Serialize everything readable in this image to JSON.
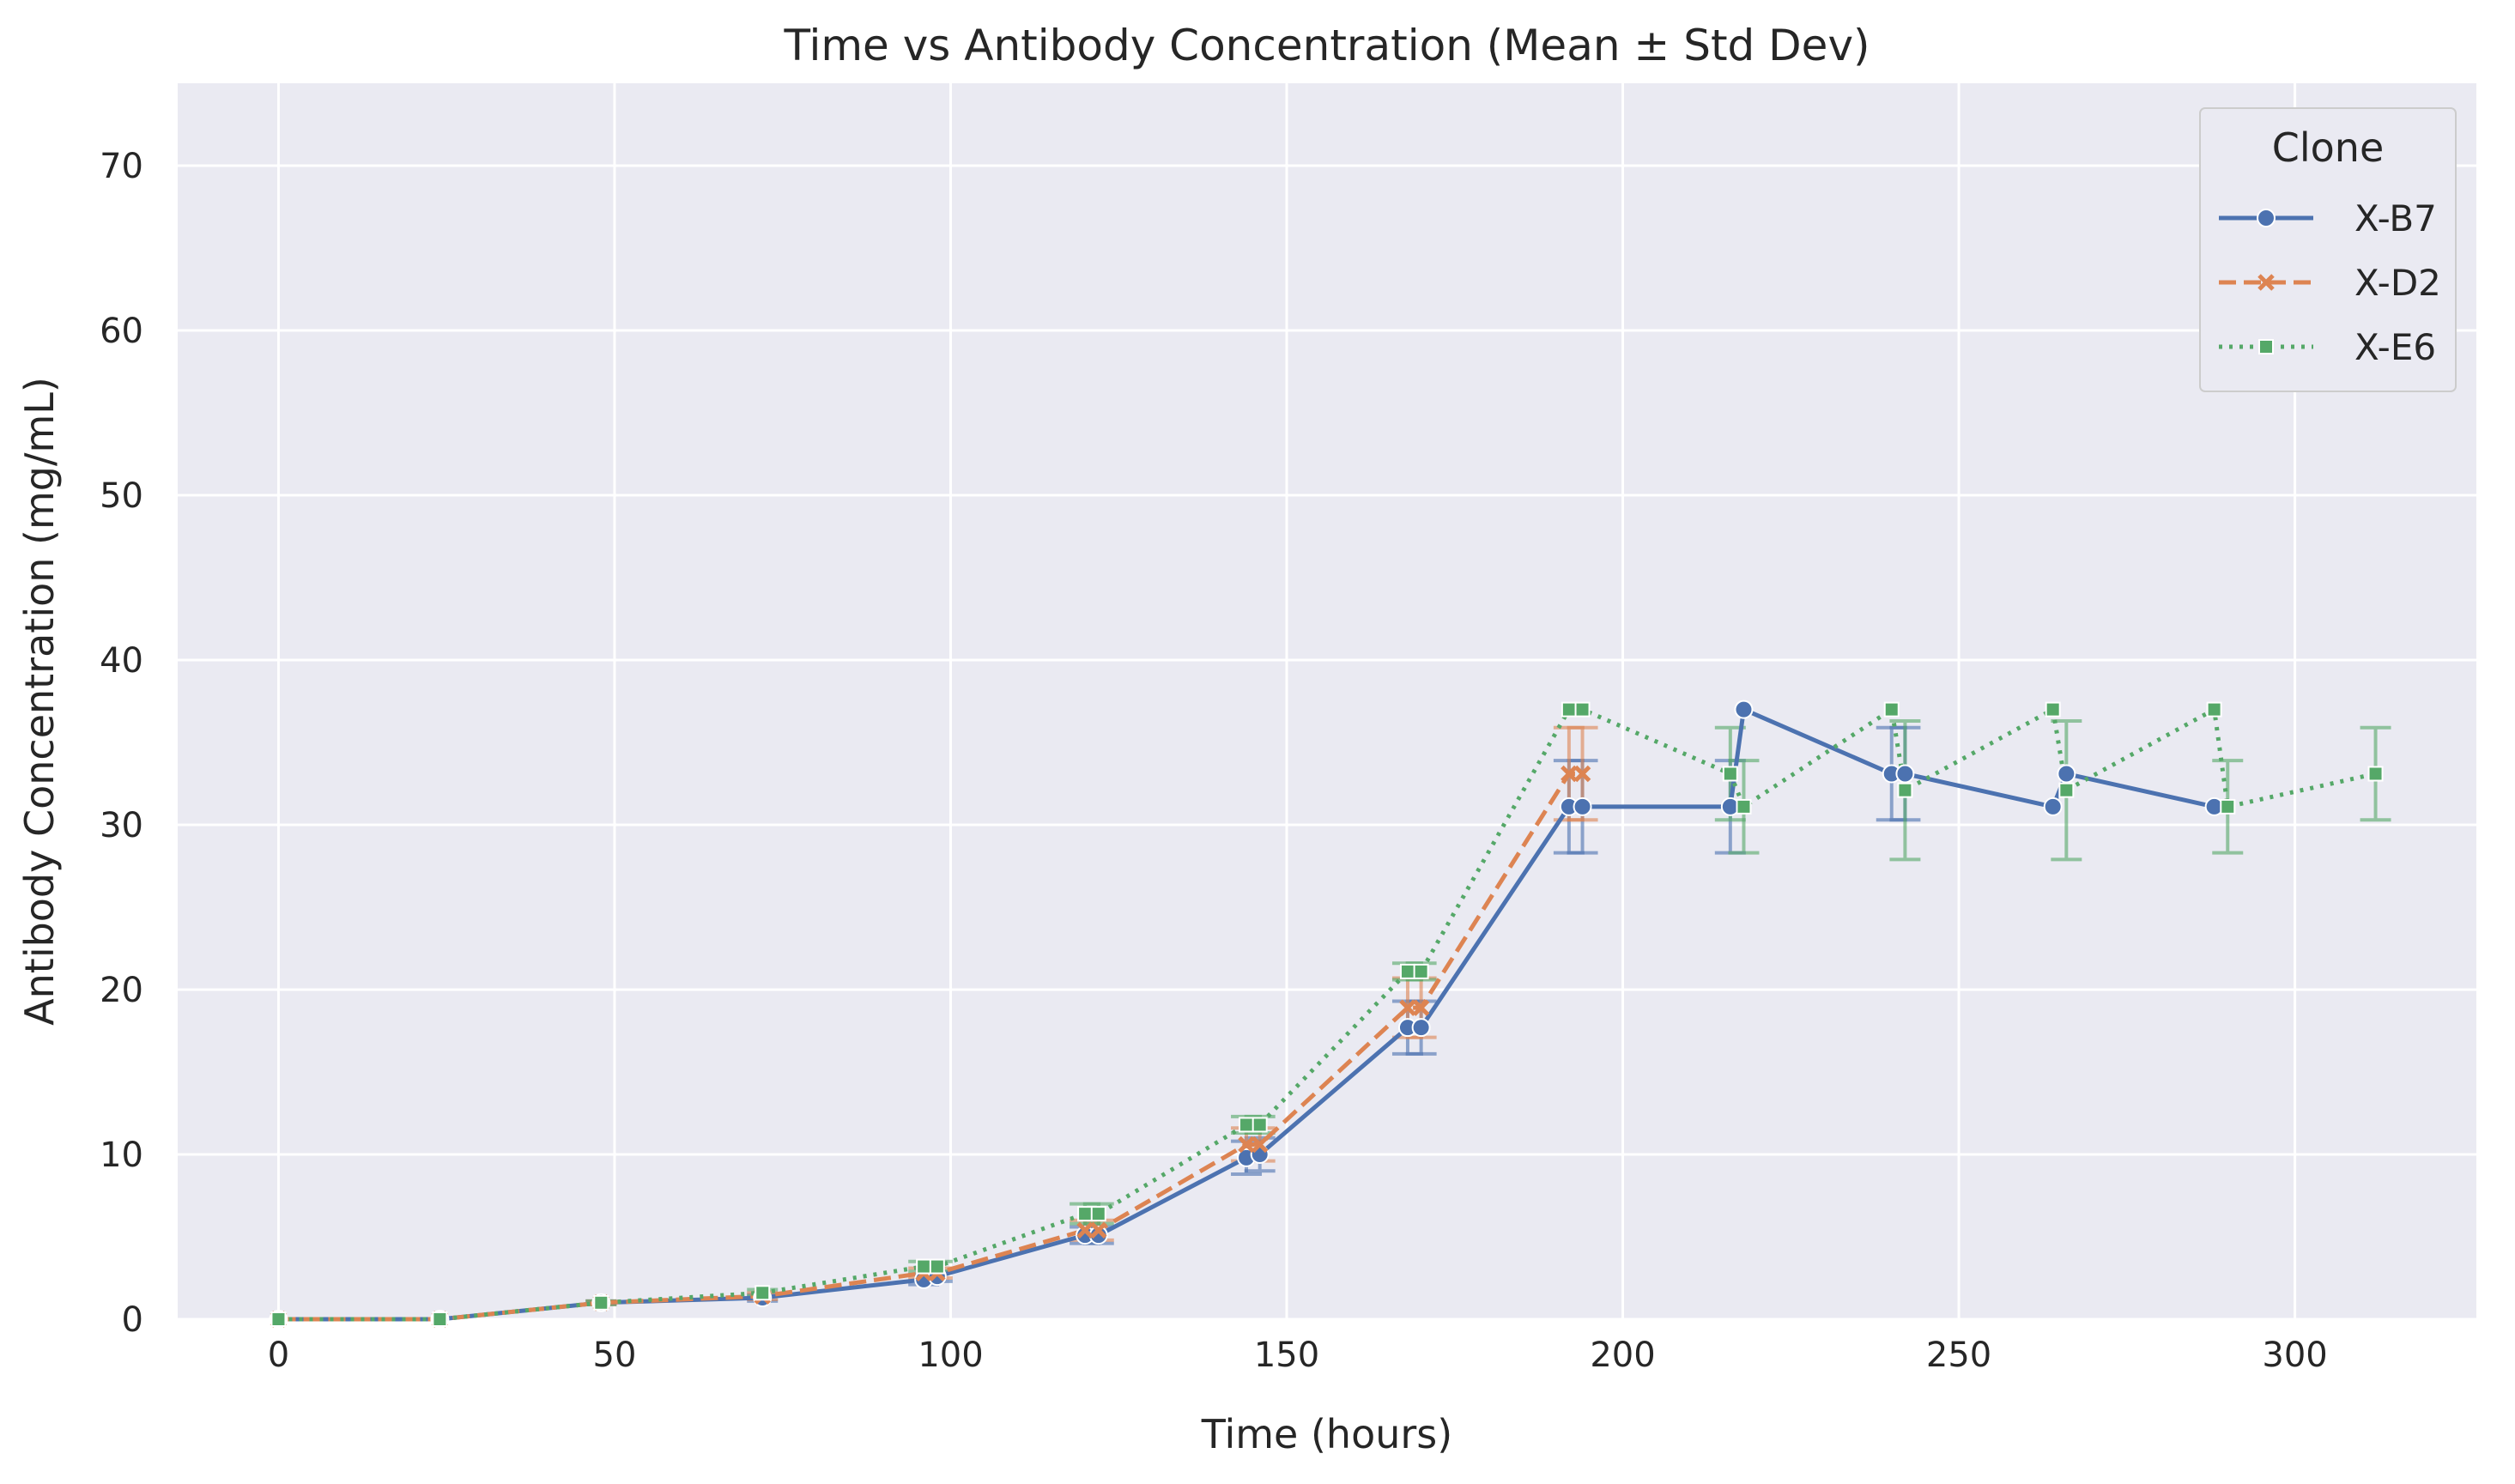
{
  "chart_data": {
    "type": "line",
    "title": "Time vs Antibody Concentration (Mean ± Std Dev)",
    "xlabel": "Time (hours)",
    "ylabel": "Antibody Concentration (mg/mL)",
    "xlim": [
      -15,
      327
    ],
    "ylim": [
      0,
      75
    ],
    "xticks": [
      0,
      50,
      100,
      150,
      200,
      250,
      300
    ],
    "yticks": [
      0,
      10,
      20,
      30,
      40,
      50,
      60,
      70
    ],
    "grid": true,
    "legend": {
      "title": "Clone",
      "position": "top-right"
    },
    "series": [
      {
        "name": "X-B7",
        "color": "#4c72b0",
        "dash": "solid",
        "marker": "circle",
        "points": [
          {
            "x": 0,
            "y": 0,
            "err": 0
          },
          {
            "x": 24,
            "y": 0,
            "err": 0
          },
          {
            "x": 48,
            "y": 1.0,
            "err": 0.1
          },
          {
            "x": 72,
            "y": 1.3,
            "err": 0.2
          },
          {
            "x": 96,
            "y": 2.4,
            "err": 0.3
          },
          {
            "x": 98,
            "y": 2.6,
            "err": 0.3
          },
          {
            "x": 120,
            "y": 5.1,
            "err": 0.5
          },
          {
            "x": 122,
            "y": 5.1,
            "err": 0.5
          },
          {
            "x": 144,
            "y": 9.8,
            "err": 1.0
          },
          {
            "x": 146,
            "y": 10.0,
            "err": 1.0
          },
          {
            "x": 168,
            "y": 17.7,
            "err": 1.6
          },
          {
            "x": 170,
            "y": 17.7,
            "err": 1.6
          },
          {
            "x": 192,
            "y": 31.1,
            "err": 2.8
          },
          {
            "x": 194,
            "y": 31.1,
            "err": 2.8
          },
          {
            "x": 216,
            "y": 31.1,
            "err": 2.8
          },
          {
            "x": 218,
            "y": 37.0,
            "err": 0
          },
          {
            "x": 240,
            "y": 33.1,
            "err": 2.8
          },
          {
            "x": 242,
            "y": 33.1,
            "err": 2.8
          },
          {
            "x": 264,
            "y": 31.1,
            "err": 0
          },
          {
            "x": 266,
            "y": 33.1,
            "err": 0
          },
          {
            "x": 288,
            "y": 31.1,
            "err": 0
          }
        ]
      },
      {
        "name": "X-D2",
        "color": "#dd8452",
        "dash": "dashed",
        "marker": "x",
        "points": [
          {
            "x": 0,
            "y": 0,
            "err": 0
          },
          {
            "x": 24,
            "y": 0,
            "err": 0
          },
          {
            "x": 48,
            "y": 1.0,
            "err": 0.1
          },
          {
            "x": 72,
            "y": 1.4,
            "err": 0.2
          },
          {
            "x": 96,
            "y": 2.8,
            "err": 0.3
          },
          {
            "x": 98,
            "y": 2.8,
            "err": 0.3
          },
          {
            "x": 120,
            "y": 5.4,
            "err": 0.6
          },
          {
            "x": 122,
            "y": 5.4,
            "err": 0.6
          },
          {
            "x": 144,
            "y": 10.6,
            "err": 1.0
          },
          {
            "x": 146,
            "y": 10.6,
            "err": 1.0
          },
          {
            "x": 168,
            "y": 18.9,
            "err": 1.8
          },
          {
            "x": 170,
            "y": 18.9,
            "err": 1.8
          },
          {
            "x": 192,
            "y": 33.1,
            "err": 2.8
          },
          {
            "x": 194,
            "y": 33.1,
            "err": 2.8
          }
        ]
      },
      {
        "name": "X-E6",
        "color": "#55a868",
        "dash": "dotted",
        "marker": "square",
        "points": [
          {
            "x": 0,
            "y": 0,
            "err": 0
          },
          {
            "x": 24,
            "y": 0,
            "err": 0
          },
          {
            "x": 48,
            "y": 1.0,
            "err": 0.1
          },
          {
            "x": 72,
            "y": 1.6,
            "err": 0.2
          },
          {
            "x": 96,
            "y": 3.2,
            "err": 0.3
          },
          {
            "x": 98,
            "y": 3.2,
            "err": 0.3
          },
          {
            "x": 120,
            "y": 6.4,
            "err": 0.6
          },
          {
            "x": 122,
            "y": 6.4,
            "err": 0.6
          },
          {
            "x": 144,
            "y": 11.8,
            "err": 0.5
          },
          {
            "x": 146,
            "y": 11.8,
            "err": 0.5
          },
          {
            "x": 168,
            "y": 21.1,
            "err": 0.5
          },
          {
            "x": 170,
            "y": 21.1,
            "err": 0.5
          },
          {
            "x": 192,
            "y": 37.0,
            "err": 0
          },
          {
            "x": 194,
            "y": 37.0,
            "err": 0
          },
          {
            "x": 216,
            "y": 33.1,
            "err": 2.8
          },
          {
            "x": 218,
            "y": 31.1,
            "err": 2.8
          },
          {
            "x": 240,
            "y": 37.0,
            "err": 0
          },
          {
            "x": 242,
            "y": 32.1,
            "err": 4.2
          },
          {
            "x": 264,
            "y": 37.0,
            "err": 0
          },
          {
            "x": 266,
            "y": 32.1,
            "err": 4.2
          },
          {
            "x": 288,
            "y": 37.0,
            "err": 0
          },
          {
            "x": 290,
            "y": 31.1,
            "err": 2.8
          },
          {
            "x": 312,
            "y": 33.1,
            "err": 2.8
          }
        ]
      }
    ]
  }
}
